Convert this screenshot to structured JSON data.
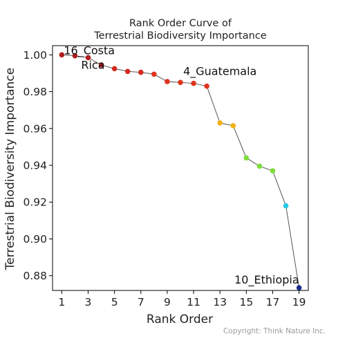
{
  "chart_data": {
    "type": "line",
    "title": [
      "Rank Order Curve of",
      "Terrestrial Biodiversity Importance"
    ],
    "xlabel": "Rank Order",
    "ylabel": "Terrestrial Biodiversity Importance",
    "xlim": [
      0.3,
      19.7
    ],
    "ylim": [
      0.872,
      1.005
    ],
    "x_ticks": [
      1,
      3,
      5,
      7,
      9,
      11,
      13,
      15,
      17,
      19
    ],
    "y_ticks": [
      0.88,
      0.9,
      0.92,
      0.94,
      0.96,
      0.98,
      1.0
    ],
    "y_tick_labels": [
      "0.88",
      "0.90",
      "0.92",
      "0.94",
      "0.96",
      "0.98",
      "1.00"
    ],
    "grid": false,
    "line_color": "#555555",
    "points": [
      {
        "x": 1,
        "y": 1.0,
        "color": "#b01e1e"
      },
      {
        "x": 2,
        "y": 0.9995,
        "color": "#b01e1e"
      },
      {
        "x": 3,
        "y": 0.9985,
        "color": "#b01e1e"
      },
      {
        "x": 4,
        "y": 0.9945,
        "color": "#b01e1e"
      },
      {
        "x": 5,
        "y": 0.9925,
        "color": "#d42a1f"
      },
      {
        "x": 6,
        "y": 0.991,
        "color": "#d42a1f"
      },
      {
        "x": 7,
        "y": 0.9905,
        "color": "#d42a1f"
      },
      {
        "x": 8,
        "y": 0.9895,
        "color": "#e0341e"
      },
      {
        "x": 9,
        "y": 0.9855,
        "color": "#e0341e"
      },
      {
        "x": 10,
        "y": 0.985,
        "color": "#e0341e"
      },
      {
        "x": 11,
        "y": 0.9845,
        "color": "#e0341e"
      },
      {
        "x": 12,
        "y": 0.983,
        "color": "#e0341e"
      },
      {
        "x": 13,
        "y": 0.963,
        "color": "#f2b116"
      },
      {
        "x": 14,
        "y": 0.9615,
        "color": "#f2b116"
      },
      {
        "x": 15,
        "y": 0.944,
        "color": "#7edc3a"
      },
      {
        "x": 16,
        "y": 0.9395,
        "color": "#7edc3a"
      },
      {
        "x": 17,
        "y": 0.937,
        "color": "#7edc3a"
      },
      {
        "x": 18,
        "y": 0.918,
        "color": "#28c8e6"
      },
      {
        "x": 19,
        "y": 0.8735,
        "color": "#1a2a8a"
      }
    ],
    "annotations": [
      {
        "lines": [
          "16_Costa",
          "Rica"
        ],
        "x": 1,
        "y": 1.0
      },
      {
        "lines": [
          "4_Guatemala"
        ],
        "x": 11,
        "y": 0.9845
      },
      {
        "lines": [
          "10_Ethiopia"
        ],
        "x": 19,
        "y": 0.8735
      }
    ]
  },
  "footer": {
    "copyright": "Copyright: Think Nature Inc."
  }
}
